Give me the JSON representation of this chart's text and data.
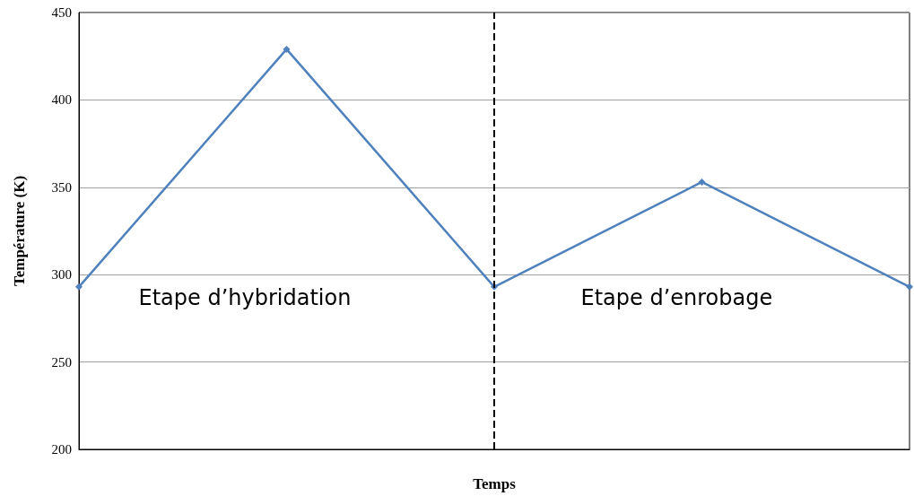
{
  "chart_data": {
    "type": "line",
    "xlabel": "Temps",
    "ylabel": "Température (K)",
    "categories": [
      null,
      null,
      null,
      null,
      null
    ],
    "series": [
      {
        "color": "#4f81bd",
        "values": [
          293,
          429,
          293,
          353,
          293
        ]
      }
    ],
    "ylim": [
      200,
      450
    ],
    "yticks": [
      200,
      250,
      300,
      350,
      400,
      450
    ],
    "grid": "y",
    "marker": "diamond",
    "line_style": "solid",
    "tick_labels": "y",
    "annotations": [
      "Etape d’hybridation",
      "Etape d’enrobage"
    ]
  }
}
